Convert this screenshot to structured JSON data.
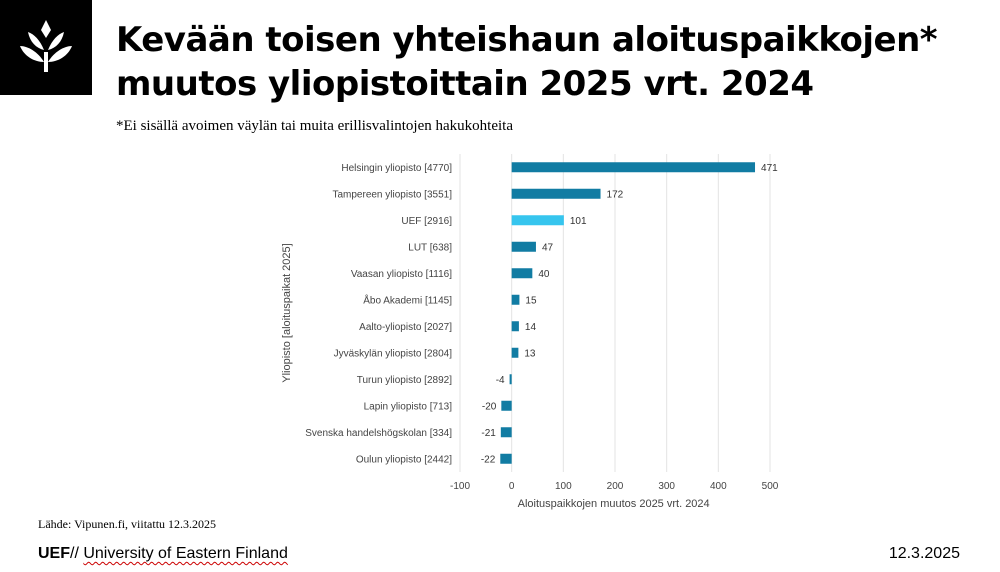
{
  "header": {
    "title_line1": "Kevään toisen yhteishaun aloituspaikkojen*",
    "title_line2": "muutos yliopistoittain 2025 vrt. 2024",
    "subtitle": "*Ei sisällä avoimen väylän tai muita erillisvalintojen hakukohteita"
  },
  "logo": {
    "icon": "uef-tree-logo-icon"
  },
  "footer": {
    "source": "Lähde: Vipunen.fi, viitattu 12.3.2025",
    "brand": "UEF",
    "separator": "//",
    "university": "University of Eastern Finland",
    "date": "12.3.2025"
  },
  "colors": {
    "bar": "#117ca3",
    "highlight": "#36c5ee",
    "grid": "#e3e3e3",
    "label": "#444444"
  },
  "chart_data": {
    "type": "bar",
    "orientation": "horizontal",
    "categories": [
      "Helsingin yliopisto [4770]",
      "Tampereen yliopisto [3551]",
      "UEF [2916]",
      "LUT [638]",
      "Vaasan yliopisto [1116]",
      "Åbo Akademi [1145]",
      "Aalto-yliopisto [2027]",
      "Jyväskylän yliopisto [2804]",
      "Turun yliopisto [2892]",
      "Lapin yliopisto [713]",
      "Svenska handelshögskolan [334]",
      "Oulun yliopisto [2442]"
    ],
    "values": [
      471,
      172,
      101,
      47,
      40,
      15,
      14,
      13,
      -4,
      -20,
      -21,
      -22
    ],
    "highlight_index": 2,
    "xlabel": "Aloituspaikkojen muutos 2025 vrt. 2024",
    "ylabel": "Yliopisto [aloituspaikat 2025]",
    "xlim": [
      -100,
      500
    ],
    "xticks": [
      -100,
      0,
      100,
      200,
      300,
      400,
      500
    ],
    "grid": true,
    "legend": "none"
  }
}
